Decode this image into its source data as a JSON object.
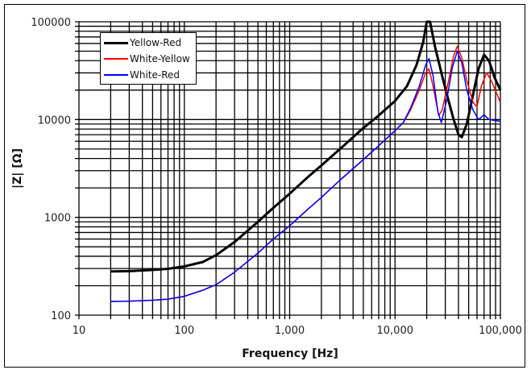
{
  "chart_data": {
    "type": "line",
    "title": "",
    "xlabel": "Frequency [Hz]",
    "ylabel": "|Z| [Ω]",
    "xscale": "log",
    "yscale": "log",
    "xlim": [
      10,
      100000
    ],
    "ylim": [
      100,
      100000
    ],
    "grid": true,
    "legend_position": "upper-left",
    "x_tick_labels": [
      "10",
      "100",
      "1,000",
      "10,000",
      "100,000"
    ],
    "y_tick_labels": [
      "100",
      "1000",
      "10000",
      "100000"
    ],
    "series": [
      {
        "name": "Yellow-Red",
        "color": "#000000",
        "width": 3,
        "points": [
          [
            20,
            280
          ],
          [
            30,
            282
          ],
          [
            50,
            290
          ],
          [
            70,
            298
          ],
          [
            100,
            315
          ],
          [
            150,
            350
          ],
          [
            200,
            410
          ],
          [
            300,
            560
          ],
          [
            500,
            900
          ],
          [
            700,
            1250
          ],
          [
            1000,
            1750
          ],
          [
            1500,
            2600
          ],
          [
            2000,
            3400
          ],
          [
            3000,
            5000
          ],
          [
            5000,
            8200
          ],
          [
            7000,
            11000
          ],
          [
            10000,
            15500
          ],
          [
            13000,
            22000
          ],
          [
            16000,
            36000
          ],
          [
            18500,
            62000
          ],
          [
            20000,
            100000
          ],
          [
            21500,
            100000
          ],
          [
            24000,
            55000
          ],
          [
            28000,
            28000
          ],
          [
            32000,
            16000
          ],
          [
            36000,
            10000
          ],
          [
            40000,
            7000
          ],
          [
            43000,
            6600
          ],
          [
            48000,
            9000
          ],
          [
            55000,
            18000
          ],
          [
            62000,
            33000
          ],
          [
            70000,
            46000
          ],
          [
            78000,
            40000
          ],
          [
            88000,
            27000
          ],
          [
            100000,
            20000
          ]
        ]
      },
      {
        "name": "White-Yellow",
        "color": "#ff0000",
        "width": 1.5,
        "points": [
          [
            20,
            138
          ],
          [
            30,
            139
          ],
          [
            50,
            142
          ],
          [
            70,
            146
          ],
          [
            100,
            156
          ],
          [
            150,
            180
          ],
          [
            200,
            205
          ],
          [
            300,
            275
          ],
          [
            500,
            430
          ],
          [
            700,
            600
          ],
          [
            1000,
            820
          ],
          [
            1500,
            1220
          ],
          [
            2000,
            1600
          ],
          [
            3000,
            2400
          ],
          [
            5000,
            3900
          ],
          [
            7000,
            5400
          ],
          [
            10000,
            7700
          ],
          [
            12000,
            9300
          ],
          [
            14000,
            12500
          ],
          [
            17000,
            20000
          ],
          [
            19500,
            30000
          ],
          [
            21000,
            33000
          ],
          [
            23000,
            22000
          ],
          [
            26000,
            11000
          ],
          [
            28000,
            12500
          ],
          [
            32000,
            24000
          ],
          [
            36000,
            45000
          ],
          [
            39000,
            56000
          ],
          [
            43000,
            43000
          ],
          [
            48000,
            25000
          ],
          [
            55000,
            15000
          ],
          [
            60000,
            13500
          ],
          [
            66000,
            22000
          ],
          [
            74000,
            30000
          ],
          [
            82000,
            25000
          ],
          [
            100000,
            15000
          ]
        ]
      },
      {
        "name": "White-Red",
        "color": "#0000ff",
        "width": 1.5,
        "points": [
          [
            20,
            138
          ],
          [
            30,
            139
          ],
          [
            50,
            142
          ],
          [
            70,
            146
          ],
          [
            100,
            156
          ],
          [
            150,
            180
          ],
          [
            200,
            205
          ],
          [
            300,
            275
          ],
          [
            500,
            430
          ],
          [
            700,
            600
          ],
          [
            1000,
            820
          ],
          [
            1500,
            1220
          ],
          [
            2000,
            1600
          ],
          [
            3000,
            2400
          ],
          [
            5000,
            3900
          ],
          [
            7000,
            5400
          ],
          [
            10000,
            7700
          ],
          [
            12000,
            9400
          ],
          [
            14000,
            13000
          ],
          [
            17000,
            22000
          ],
          [
            19500,
            36000
          ],
          [
            21000,
            42000
          ],
          [
            23000,
            28000
          ],
          [
            25500,
            12000
          ],
          [
            27500,
            9300
          ],
          [
            31000,
            16000
          ],
          [
            35000,
            34000
          ],
          [
            39000,
            50000
          ],
          [
            43000,
            38000
          ],
          [
            48000,
            20000
          ],
          [
            55000,
            12500
          ],
          [
            62000,
            10000
          ],
          [
            70000,
            11200
          ],
          [
            78000,
            10000
          ],
          [
            88000,
            9800
          ],
          [
            100000,
            9600
          ]
        ]
      }
    ]
  },
  "legend": {
    "items": [
      {
        "label": "Yellow-Red",
        "color": "#000000"
      },
      {
        "label": "White-Yellow",
        "color": "#ff0000"
      },
      {
        "label": "White-Red",
        "color": "#0000ff"
      }
    ]
  }
}
